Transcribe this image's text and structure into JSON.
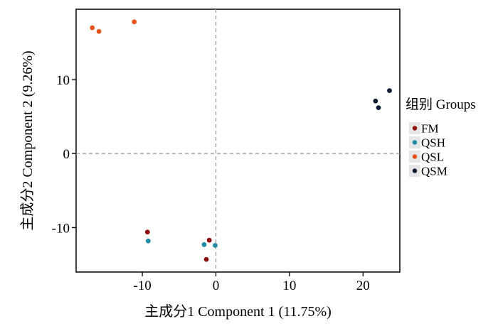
{
  "chart_data": {
    "type": "scatter",
    "xlabel": "主成分1 Component 1 (11.75%)",
    "ylabel": "主成分2 Component 2 (9.26%)",
    "xlim": [
      -19,
      25
    ],
    "ylim": [
      -16,
      19.5
    ],
    "xticks": [
      -10,
      0,
      10,
      20
    ],
    "yticks": [
      -10,
      0,
      10
    ],
    "tick_labels_x": [
      "-10",
      "0",
      "10",
      "20"
    ],
    "tick_labels_y": [
      "-10",
      "0",
      "10"
    ],
    "reference_lines": {
      "x": 0,
      "y": 0,
      "style": "dashed"
    },
    "grid": false,
    "legend": {
      "title": "组别 Groups",
      "placement": "right"
    },
    "series": [
      {
        "name": "FM",
        "color": "#8b0a0a",
        "points": [
          [
            -9.3,
            -10.6
          ],
          [
            -0.9,
            -11.7
          ],
          [
            -1.3,
            -14.3
          ]
        ]
      },
      {
        "name": "QSH",
        "color": "#1f8aa6",
        "points": [
          [
            -9.2,
            -11.8
          ],
          [
            -1.6,
            -12.3
          ],
          [
            -0.1,
            -12.4
          ]
        ]
      },
      {
        "name": "QSL",
        "color": "#e8531c",
        "points": [
          [
            -16.8,
            17.0
          ],
          [
            -15.9,
            16.5
          ],
          [
            -11.1,
            17.8
          ]
        ]
      },
      {
        "name": "QSM",
        "color": "#0d1a33",
        "points": [
          [
            21.7,
            7.1
          ],
          [
            22.1,
            6.2
          ],
          [
            23.6,
            8.5
          ]
        ]
      }
    ]
  }
}
